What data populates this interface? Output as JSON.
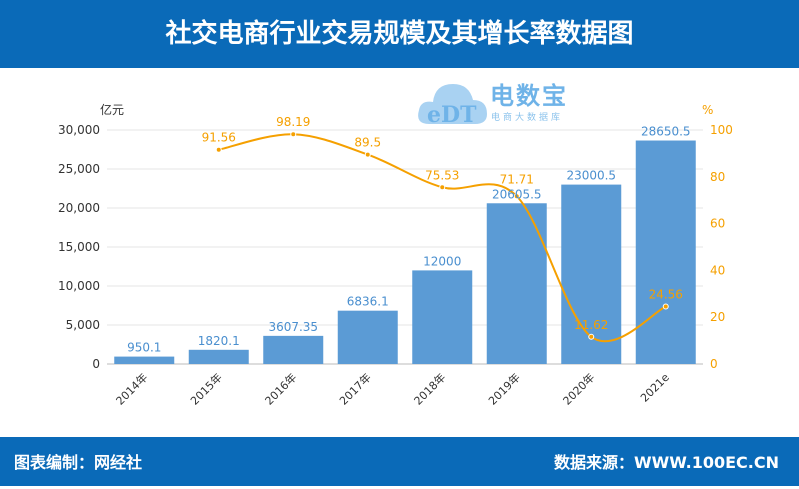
{
  "header": {
    "title": "社交电商行业交易规模及其增长率数据图"
  },
  "footer": {
    "credit": "图表编制：网经社",
    "source": "数据来源：WWW.100EC.CN"
  },
  "logo": {
    "name": "电数宝",
    "subtitle": "电商大数据库"
  },
  "chart_data": {
    "type": "bar+line",
    "categories": [
      "2014年",
      "2015年",
      "2016年",
      "2017年",
      "2018年",
      "2019年",
      "2020年",
      "2021e"
    ],
    "series": [
      {
        "type": "bar",
        "axis": "left",
        "color": "#5b9bd5",
        "values": [
          950.1,
          1820.1,
          3607.35,
          6836.1,
          12000,
          20605.5,
          23000.5,
          28650.5
        ]
      },
      {
        "type": "line",
        "axis": "right",
        "color": "#f5a000",
        "values": [
          null,
          91.56,
          98.19,
          89.5,
          75.53,
          71.71,
          11.62,
          24.56
        ]
      }
    ],
    "left_axis": {
      "unit": "亿元",
      "range": [
        0,
        30000
      ],
      "ticks": [
        "0",
        "5,000",
        "10,000",
        "15,000",
        "20,000",
        "25,000",
        "30,000"
      ]
    },
    "right_axis": {
      "unit": "%",
      "range": [
        0,
        100
      ],
      "ticks": [
        "0",
        "20",
        "40",
        "60",
        "80",
        "100"
      ]
    },
    "grid": true
  }
}
